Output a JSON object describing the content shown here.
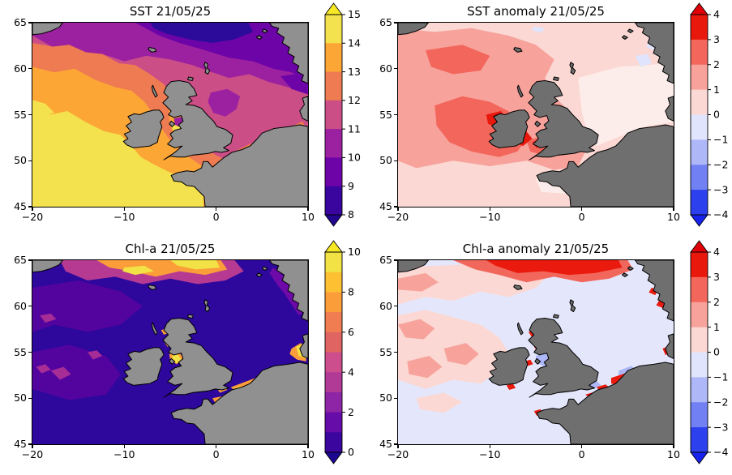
{
  "figure": {
    "background": "#ffffff",
    "date": "21/05/25",
    "coast_color": "#000000"
  },
  "axes": {
    "x_ticks": [
      "−20",
      "−10",
      "0",
      "10"
    ],
    "y_ticks": [
      "65",
      "60",
      "55",
      "50",
      "45"
    ],
    "x_range": [
      -20,
      10
    ],
    "y_range": [
      45,
      65
    ]
  },
  "panels": [
    {
      "id": "sst",
      "title": "SST 21/05/25",
      "land_color": "#909090",
      "colorbar": {
        "ticks": [
          "15",
          "14",
          "13",
          "12",
          "11",
          "10",
          "9",
          "8"
        ],
        "bands": [
          "#f3e24d",
          "#fca636",
          "#ee7b51",
          "#cb4e87",
          "#9c21a0",
          "#6d04a8",
          "#3a049e"
        ],
        "arrow_top": "#f6e825",
        "arrow_bottom": "#21058f"
      }
    },
    {
      "id": "sst-anomaly",
      "title": "SST anomaly 21/05/25",
      "land_color": "#6f6f6f",
      "colorbar": {
        "ticks": [
          "4",
          "3",
          "2",
          "1",
          "0",
          "−1",
          "−2",
          "−3",
          "−4"
        ],
        "bands": [
          "#e9180d",
          "#f2665c",
          "#f7a29b",
          "#fbd8d3",
          "#e0e4fc",
          "#aeb7f8",
          "#7181f4",
          "#2c40ee"
        ],
        "arrow_top": "#e00007",
        "arrow_bottom": "#1722ed"
      }
    },
    {
      "id": "chl",
      "title": "Chl-a 21/05/25",
      "land_color": "#909090",
      "colorbar": {
        "ticks": [
          "10",
          "8",
          "6",
          "4",
          "2",
          "0"
        ],
        "bands": [
          "#f2e245",
          "#fcc032",
          "#fb9e3a",
          "#f07d51",
          "#e06462",
          "#cd4e8c",
          "#b13a97",
          "#8e24a6",
          "#660ca8",
          "#3b069e"
        ],
        "arrow_top": "#f6e825",
        "arrow_bottom": "#1c0791"
      }
    },
    {
      "id": "chl-anomaly",
      "title": "Chl-a anomaly 21/05/25",
      "land_color": "#6f6f6f",
      "colorbar": {
        "ticks": [
          "4",
          "3",
          "2",
          "1",
          "0",
          "−1",
          "−2",
          "−3",
          "−4"
        ],
        "bands": [
          "#e9180d",
          "#f2665c",
          "#f7a29b",
          "#fbd8d3",
          "#e0e4fc",
          "#aeb7f8",
          "#7181f4",
          "#2c40ee"
        ],
        "arrow_top": "#e00007",
        "arrow_bottom": "#1722ed"
      }
    }
  ],
  "chart_data": [
    {
      "type": "heatmap",
      "title": "SST 21/05/25",
      "x_range": [
        -20,
        10
      ],
      "y_range": [
        45,
        65
      ],
      "x_ticks": [
        -20,
        -10,
        0,
        10
      ],
      "y_ticks": [
        45,
        50,
        55,
        60,
        65
      ],
      "colorbar_range": [
        8,
        15
      ],
      "colorbar_ticks": [
        8,
        9,
        10,
        11,
        12,
        13,
        14,
        15
      ],
      "colorbar_extend": "both",
      "palette": "plasma-like discrete, 7 bands",
      "features": [
        "Warmest water 14-15 (yellow) across southwest Atlantic, Biscay and Celtic Sea",
        "13-14 orange band northwest of the yellow pool and in the Irish Sea and Channel coasts",
        "12-13 salmon band from northwest corner toward Scotland and along the continental North Sea coast",
        "11-12 magenta over central North Sea and far northwest",
        "10-11 and 9-10 purple across the northern margin and Norwegian coast",
        "Coldest 8-9 navy patch at top centre near Faroe-Norway gap"
      ]
    },
    {
      "type": "heatmap",
      "title": "SST anomaly 21/05/25",
      "x_range": [
        -20,
        10
      ],
      "y_range": [
        45,
        65
      ],
      "colorbar_range": [
        -4,
        4
      ],
      "colorbar_ticks": [
        -4,
        -3,
        -2,
        -1,
        0,
        1,
        2,
        3,
        4
      ],
      "colorbar_extend": "both",
      "palette": "blue-white-red discrete, 8 bands",
      "features": [
        "Whole domain mostly positive anomaly 0 to +2 (pink)",
        "+2 to +3 salmon patches west and south of Ireland and northwest corner",
        "+3 to +4 red cores west of Ireland and in the Celtic Sea",
        "Near-zero pale area over eastern North Sea",
        "Few small negative (pale blue) specks near top edge and off Norway"
      ]
    },
    {
      "type": "heatmap",
      "title": "Chl-a 21/05/25",
      "x_range": [
        -20,
        10
      ],
      "y_range": [
        45,
        65
      ],
      "colorbar_range": [
        0,
        10
      ],
      "colorbar_ticks": [
        0,
        2,
        4,
        6,
        8,
        10
      ],
      "colorbar_extend": "both",
      "palette": "plasma-like discrete, 10 bands",
      "features": [
        "Background low chlorophyll 0-2 (dark indigo) over open ocean",
        "Bloom band 6-10 (orange/yellow filaments with magenta fringe) along top edge lat 62.5-65",
        "Bright coastal maxima: German Bight, Dutch-Belgian coast, Thames/Channel coasts, Irish Sea, west Scotland",
        "Purple 2-4 patches in west Atlantic and along Norwegian coast"
      ]
    },
    {
      "type": "heatmap",
      "title": "Chl-a anomaly 21/05/25",
      "x_range": [
        -20,
        10
      ],
      "y_range": [
        45,
        65
      ],
      "colorbar_range": [
        -4,
        4
      ],
      "colorbar_ticks": [
        -4,
        -3,
        -2,
        -1,
        0,
        1,
        2,
        3,
        4
      ],
      "colorbar_extend": "both",
      "palette": "blue-white-red discrete, 8 bands",
      "features": [
        "Slightly negative background (-1 to 0, pale lavender) over most shelf seas",
        "Positive 0-2 pink over western Atlantic half",
        "Strong +3 to +4 red bloom band along top edge lat 63-65",
        "Red coastal spots: southern North Sea, Channel, Danish coast, west Scotland, Brittany",
        "Negative -2 to -1 blue patches in Irish Sea and southern North Sea"
      ]
    }
  ]
}
